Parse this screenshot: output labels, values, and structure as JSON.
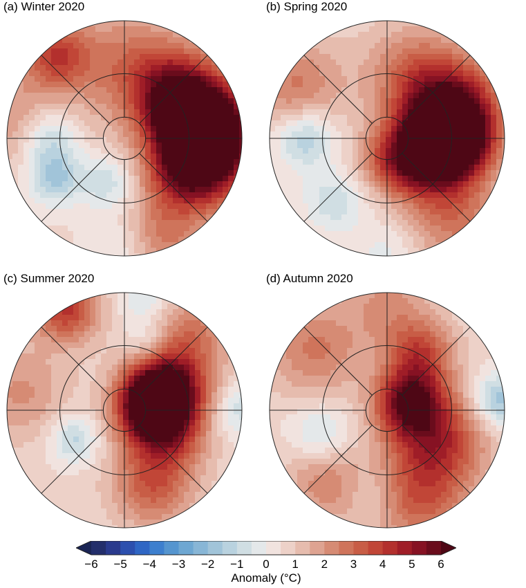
{
  "panels": [
    {
      "id": "a",
      "title": "(a) Winter 2020",
      "anomaly_fields": [
        {
          "lon": 80,
          "colat": 36,
          "val": 4.2,
          "s": 14
        },
        {
          "lon": 100,
          "colat": 40,
          "val": 3.5,
          "s": 16
        },
        {
          "lon": 110,
          "colat": 28,
          "val": 4.8,
          "s": 11
        },
        {
          "lon": 60,
          "colat": 30,
          "val": 3.0,
          "s": 12
        },
        {
          "lon": 140,
          "colat": 30,
          "val": 2.5,
          "s": 12
        },
        {
          "lon": 180,
          "colat": 30,
          "val": 2.0,
          "s": 18
        },
        {
          "lon": -60,
          "colat": 34,
          "val": -2.2,
          "s": 8
        },
        {
          "lon": -90,
          "colat": 32,
          "val": -1.8,
          "s": 9
        },
        {
          "lon": -140,
          "colat": 46,
          "val": 3.0,
          "s": 10
        },
        {
          "lon": -20,
          "colat": 20,
          "val": -1.5,
          "s": 8
        },
        {
          "lon": 0,
          "colat": 45,
          "val": -1.0,
          "s": 10
        },
        {
          "lon": 20,
          "colat": 45,
          "val": 2.0,
          "s": 12
        },
        {
          "lon": -100,
          "colat": 50,
          "val": 1.5,
          "s": 14
        }
      ]
    },
    {
      "id": "b",
      "title": "(b) Spring 2020",
      "anomaly_fields": [
        {
          "lon": 90,
          "colat": 28,
          "val": 5.5,
          "s": 11
        },
        {
          "lon": 100,
          "colat": 24,
          "val": 4.0,
          "s": 14
        },
        {
          "lon": 120,
          "colat": 34,
          "val": 2.5,
          "s": 14
        },
        {
          "lon": 60,
          "colat": 20,
          "val": 3.0,
          "s": 12
        },
        {
          "lon": 20,
          "colat": 10,
          "val": 2.5,
          "s": 10
        },
        {
          "lon": 160,
          "colat": 30,
          "val": 2.0,
          "s": 14
        },
        {
          "lon": -90,
          "colat": 35,
          "val": -2.2,
          "s": 9
        },
        {
          "lon": -40,
          "colat": 35,
          "val": -1.5,
          "s": 9
        },
        {
          "lon": -120,
          "colat": 45,
          "val": 2.0,
          "s": 14
        },
        {
          "lon": 40,
          "colat": 45,
          "val": 2.0,
          "s": 14
        },
        {
          "lon": 0,
          "colat": 48,
          "val": -0.8,
          "s": 10
        }
      ]
    },
    {
      "id": "c",
      "title": "(c) Summer 2020",
      "anomaly_fields": [
        {
          "lon": 100,
          "colat": 12,
          "val": 6.0,
          "s": 10
        },
        {
          "lon": 120,
          "colat": 22,
          "val": 4.5,
          "s": 12
        },
        {
          "lon": 60,
          "colat": 20,
          "val": 3.0,
          "s": 12
        },
        {
          "lon": 20,
          "colat": 35,
          "val": 2.5,
          "s": 12
        },
        {
          "lon": -60,
          "colat": 25,
          "val": -1.8,
          "s": 7
        },
        {
          "lon": -150,
          "colat": 50,
          "val": 3.5,
          "s": 10
        },
        {
          "lon": 160,
          "colat": 30,
          "val": -1.2,
          "s": 7
        },
        {
          "lon": 90,
          "colat": 50,
          "val": -1.5,
          "s": 8
        },
        {
          "lon": 170,
          "colat": 48,
          "val": -1.2,
          "s": 8
        },
        {
          "lon": -100,
          "colat": 45,
          "val": 1.5,
          "s": 14
        },
        {
          "lon": 140,
          "colat": 45,
          "val": 1.8,
          "s": 12
        }
      ]
    },
    {
      "id": "d",
      "title": "(d) Autumn 2020",
      "anomaly_fields": [
        {
          "lon": 110,
          "colat": 10,
          "val": 5.0,
          "s": 10
        },
        {
          "lon": 60,
          "colat": 25,
          "val": 3.5,
          "s": 14
        },
        {
          "lon": 20,
          "colat": 40,
          "val": 2.5,
          "s": 14
        },
        {
          "lon": 150,
          "colat": 28,
          "val": 3.0,
          "s": 10
        },
        {
          "lon": 95,
          "colat": 48,
          "val": -2.5,
          "s": 8
        },
        {
          "lon": -70,
          "colat": 30,
          "val": -1.5,
          "s": 9
        },
        {
          "lon": -40,
          "colat": 40,
          "val": 1.8,
          "s": 12
        },
        {
          "lon": -130,
          "colat": 40,
          "val": 2.0,
          "s": 14
        },
        {
          "lon": 180,
          "colat": 45,
          "val": 1.5,
          "s": 12
        },
        {
          "lon": -10,
          "colat": 35,
          "val": -0.8,
          "s": 8
        }
      ]
    }
  ],
  "colorbar": {
    "title": "Anomaly (°C)",
    "tick_labels": [
      "−6",
      "−5",
      "−4",
      "−3",
      "−2",
      "−1",
      "0",
      "1",
      "2",
      "3",
      "4",
      "5",
      "6"
    ],
    "min": -6,
    "max": 6,
    "step": 0.5,
    "colors": [
      "#232e6b",
      "#2a3a8d",
      "#2c4fae",
      "#2f66c4",
      "#3d7fce",
      "#5595cf",
      "#6ea7d2",
      "#88b6d6",
      "#a1c4d9",
      "#b9d2df",
      "#d0dee3",
      "#e4e8ea",
      "#f1e3df",
      "#edd1c8",
      "#e6bcae",
      "#dea391",
      "#d68b74",
      "#cf745b",
      "#c85d46",
      "#c14637",
      "#b3302d",
      "#9f1d27",
      "#861223",
      "#6a0c1c"
    ],
    "over_color": "#4e0715",
    "under_color": "#1a2454"
  }
}
